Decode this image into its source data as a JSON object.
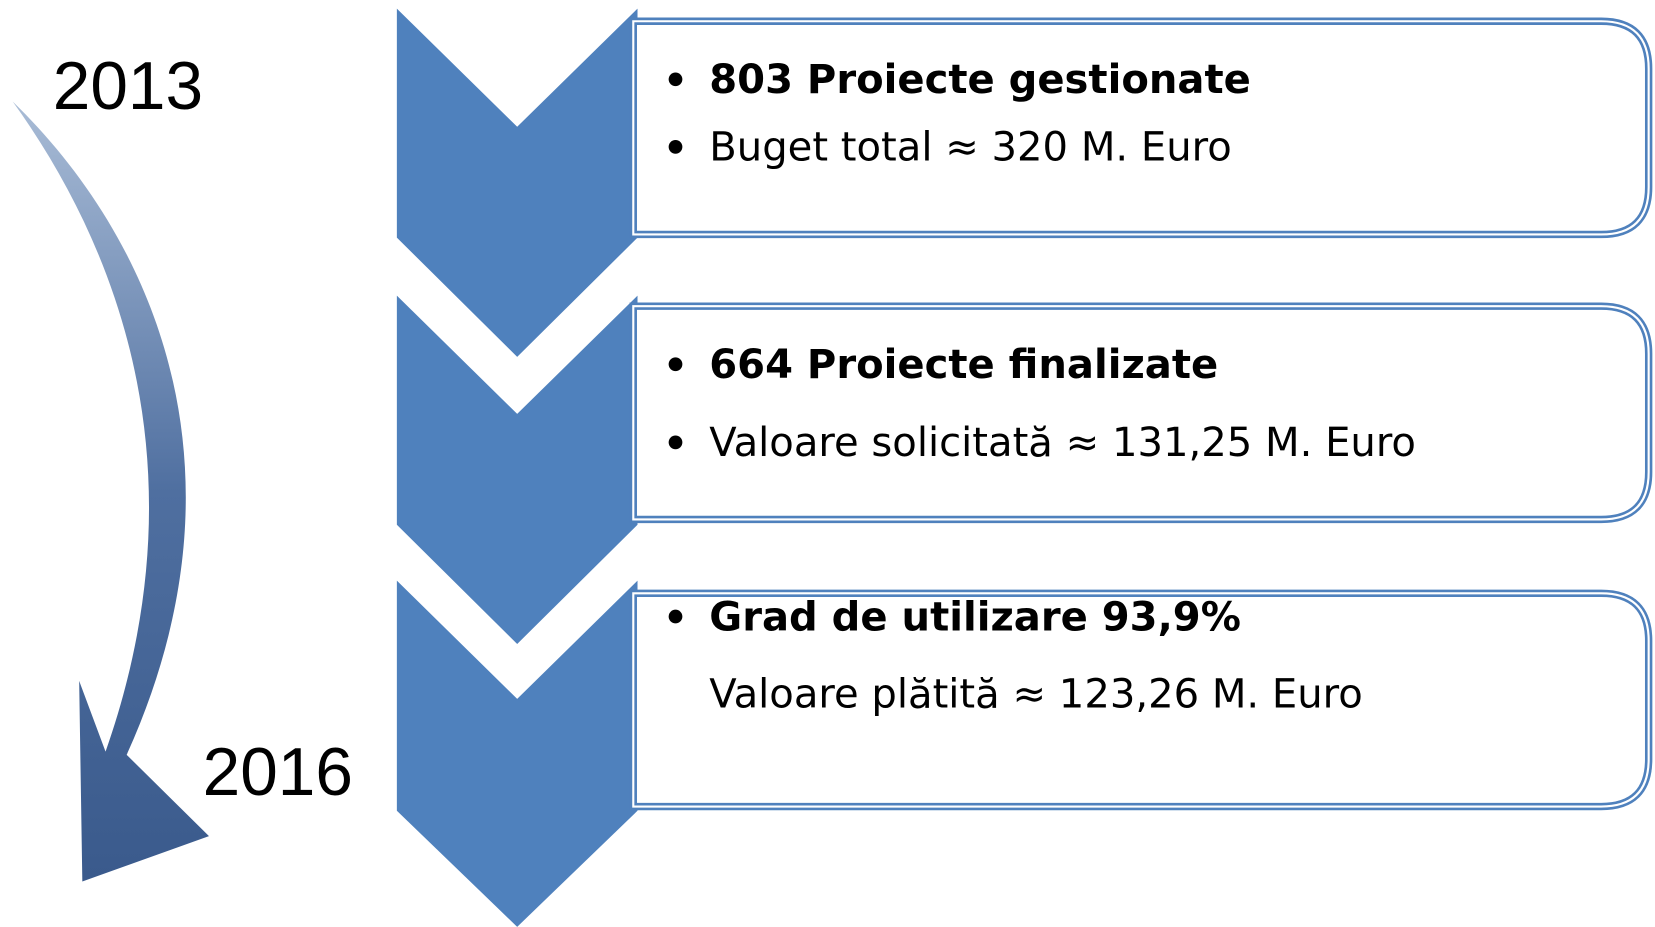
{
  "years": {
    "start": "2013",
    "end": "2016"
  },
  "steps": [
    {
      "lines": [
        "803 Proiecte gestionate",
        "Buget total ≈ 320 M. Euro"
      ]
    },
    {
      "lines": [
        "664 Proiecte finalizate",
        "Valoare solicitată ≈ 131,25 M. Euro"
      ]
    },
    {
      "lines": [
        "Grad de utilizare 93,9%",
        "Valoare plătită ≈ 123,26 M. Euro"
      ]
    }
  ]
}
